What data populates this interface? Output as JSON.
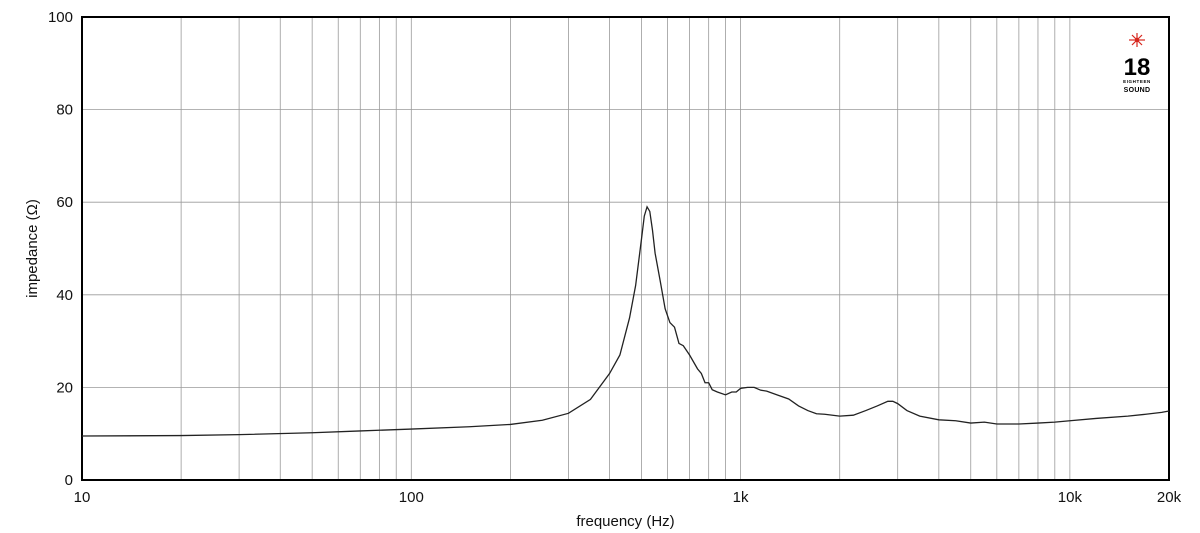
{
  "chart_data": {
    "type": "line",
    "xscale": "log",
    "xlim": [
      10,
      20000
    ],
    "ylim": [
      0,
      100
    ],
    "xlabel": "frequency (Hz)",
    "ylabel": "impedance (Ω)",
    "xticks": [
      {
        "value": 10,
        "label": "10"
      },
      {
        "value": 100,
        "label": "100"
      },
      {
        "value": 1000,
        "label": "1k"
      },
      {
        "value": 10000,
        "label": "10k"
      },
      {
        "value": 20000,
        "label": "20k"
      }
    ],
    "yticks": [
      {
        "value": 0,
        "label": "0"
      },
      {
        "value": 20,
        "label": "20"
      },
      {
        "value": 40,
        "label": "40"
      },
      {
        "value": 60,
        "label": "60"
      },
      {
        "value": 80,
        "label": "80"
      },
      {
        "value": 100,
        "label": "100"
      }
    ],
    "grid": true,
    "series": [
      {
        "color": "#222222",
        "points": [
          [
            10,
            9.5
          ],
          [
            20,
            9.6
          ],
          [
            30,
            9.8
          ],
          [
            50,
            10.2
          ],
          [
            70,
            10.6
          ],
          [
            100,
            11.0
          ],
          [
            150,
            11.5
          ],
          [
            200,
            12.0
          ],
          [
            250,
            12.9
          ],
          [
            300,
            14.4
          ],
          [
            350,
            17.4
          ],
          [
            400,
            23.0
          ],
          [
            430,
            27.0
          ],
          [
            460,
            35.0
          ],
          [
            480,
            42.0
          ],
          [
            500,
            52.0
          ],
          [
            510,
            57.0
          ],
          [
            520,
            59.0
          ],
          [
            530,
            58.0
          ],
          [
            540,
            54.0
          ],
          [
            550,
            49.0
          ],
          [
            570,
            43.0
          ],
          [
            590,
            37.0
          ],
          [
            610,
            34.0
          ],
          [
            630,
            33.0
          ],
          [
            650,
            29.5
          ],
          [
            670,
            29.0
          ],
          [
            700,
            27.0
          ],
          [
            740,
            24.0
          ],
          [
            760,
            23.0
          ],
          [
            780,
            21.0
          ],
          [
            800,
            21.0
          ],
          [
            820,
            19.5
          ],
          [
            850,
            19.0
          ],
          [
            900,
            18.4
          ],
          [
            940,
            19.0
          ],
          [
            970,
            19.0
          ],
          [
            1000,
            19.8
          ],
          [
            1050,
            20.0
          ],
          [
            1100,
            20.0
          ],
          [
            1150,
            19.4
          ],
          [
            1200,
            19.2
          ],
          [
            1300,
            18.3
          ],
          [
            1400,
            17.5
          ],
          [
            1500,
            16.0
          ],
          [
            1600,
            15.0
          ],
          [
            1700,
            14.3
          ],
          [
            1800,
            14.2
          ],
          [
            2000,
            13.8
          ],
          [
            2200,
            14.0
          ],
          [
            2400,
            15.0
          ],
          [
            2600,
            16.0
          ],
          [
            2800,
            17.0
          ],
          [
            2900,
            17.0
          ],
          [
            3000,
            16.5
          ],
          [
            3200,
            15.0
          ],
          [
            3500,
            13.8
          ],
          [
            4000,
            13.0
          ],
          [
            4500,
            12.8
          ],
          [
            5000,
            12.3
          ],
          [
            5500,
            12.5
          ],
          [
            6000,
            12.1
          ],
          [
            7000,
            12.1
          ],
          [
            8000,
            12.3
          ],
          [
            9000,
            12.5
          ],
          [
            10000,
            12.8
          ],
          [
            12000,
            13.3
          ],
          [
            15000,
            13.8
          ],
          [
            17000,
            14.2
          ],
          [
            19000,
            14.6
          ],
          [
            20000,
            14.9
          ]
        ]
      }
    ]
  },
  "logo": {
    "number": "18",
    "small_text": "EIGHTEEN",
    "word": "SOUND",
    "star_color": "#d7261e"
  }
}
